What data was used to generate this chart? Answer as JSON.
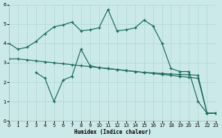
{
  "xlabel": "Humidex (Indice chaleur)",
  "bg_color": "#cce9e9",
  "grid_color": "#aad4d4",
  "line_color": "#1a6b5a",
  "ylim": [
    0,
    6
  ],
  "xlim": [
    0,
    23
  ],
  "line_top_x": [
    0,
    1,
    2,
    3,
    4,
    5,
    6,
    7,
    8,
    9,
    10,
    11,
    12,
    13,
    14,
    15,
    16,
    17,
    18,
    19,
    20,
    21,
    22,
    23
  ],
  "line_top_y": [
    4.0,
    3.7,
    3.8,
    4.1,
    4.5,
    4.85,
    4.95,
    5.1,
    4.65,
    4.7,
    4.8,
    5.75,
    4.65,
    4.7,
    4.8,
    5.2,
    4.9,
    4.0,
    2.7,
    2.55,
    2.55,
    1.0,
    0.4,
    0.4
  ],
  "line_flat_x": [
    0,
    1,
    2,
    3,
    4,
    5,
    6,
    7,
    8,
    9,
    10,
    11,
    12,
    13,
    14,
    15,
    16,
    17,
    18,
    19,
    20,
    21,
    22,
    23
  ],
  "line_flat_y": [
    3.2,
    3.2,
    3.15,
    3.1,
    3.05,
    3.0,
    2.95,
    2.9,
    2.85,
    2.8,
    2.75,
    2.7,
    2.65,
    2.6,
    2.55,
    2.5,
    2.48,
    2.45,
    2.42,
    2.4,
    2.38,
    2.35,
    0.4,
    0.4
  ],
  "line_low_x": [
    3,
    4,
    5,
    6,
    7,
    8,
    9,
    10,
    11,
    12,
    13,
    14,
    15,
    16,
    17,
    18,
    19,
    20,
    21,
    22,
    23
  ],
  "line_low_y": [
    2.5,
    2.2,
    1.0,
    2.1,
    2.3,
    3.7,
    2.85,
    2.75,
    2.7,
    2.65,
    2.6,
    2.55,
    2.5,
    2.45,
    2.4,
    2.35,
    2.3,
    2.25,
    2.2,
    0.4,
    0.4
  ]
}
